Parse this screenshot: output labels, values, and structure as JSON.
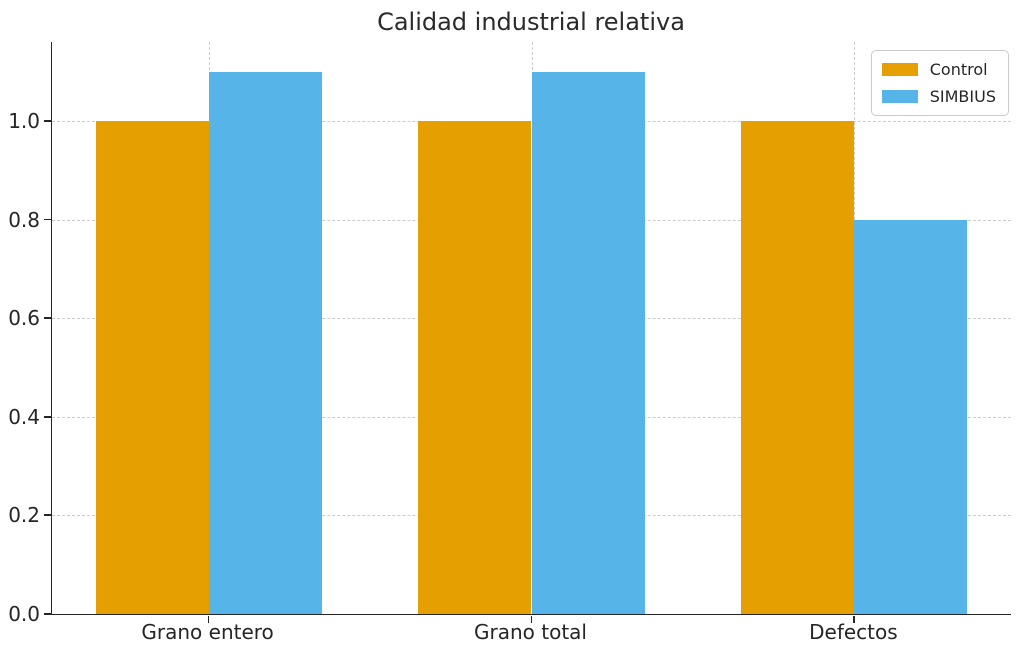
{
  "chart_data": {
    "type": "bar",
    "title": "Calidad industrial relativa",
    "categories": [
      "Grano entero",
      "Grano total",
      "Defectos"
    ],
    "series": [
      {
        "name": "Control",
        "color": "#E69F00",
        "values": [
          1.0,
          1.0,
          1.0
        ]
      },
      {
        "name": "SIMBIUS",
        "color": "#56B4E9",
        "values": [
          1.1,
          1.1,
          0.8
        ]
      }
    ],
    "xlabel": "",
    "ylabel": "",
    "yticks": [
      0.0,
      0.2,
      0.4,
      0.6,
      0.8,
      1.0
    ],
    "ytick_labels": [
      "0.0",
      "0.2",
      "0.4",
      "0.6",
      "0.8",
      "1.0"
    ],
    "ylim": [
      0,
      1.16
    ],
    "xlim": [
      -0.485,
      2.485
    ],
    "bar_width": 0.35,
    "grid": "dashed, horizontal at yticks and vertical at category centers, below bars",
    "grid_color": "#cccccc",
    "legend_position": "upper right"
  },
  "colors": {
    "background": "#ffffff",
    "text": "#262626",
    "spine": "#262626"
  }
}
